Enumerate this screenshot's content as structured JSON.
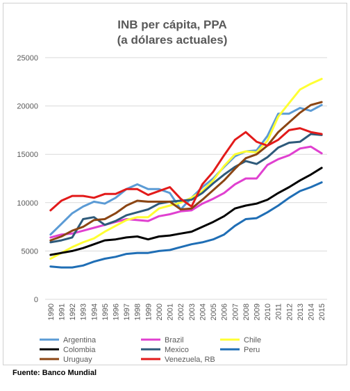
{
  "source": "Fuente: Banco Mundial",
  "chart_data": {
    "type": "line",
    "title": [
      "INB per cápita, PPA",
      "(a dólares actuales)"
    ],
    "xlabel": "",
    "ylabel": "",
    "ylim": [
      0,
      25000
    ],
    "yticks": [
      0,
      5000,
      10000,
      15000,
      20000,
      25000
    ],
    "grid": true,
    "legend_position": "bottom",
    "x": [
      1990,
      1991,
      1992,
      1993,
      1994,
      1995,
      1996,
      1997,
      1998,
      1999,
      2000,
      2001,
      2002,
      2003,
      2004,
      2005,
      2006,
      2007,
      2008,
      2009,
      2010,
      2011,
      2012,
      2013,
      2014,
      2015
    ],
    "series": [
      {
        "name": "Argentina",
        "color": "#5b9bd5",
        "values": [
          6700,
          7800,
          8900,
          9600,
          10100,
          9900,
          10500,
          11400,
          11900,
          11400,
          11400,
          11000,
          9300,
          10500,
          11600,
          12500,
          13700,
          14800,
          15300,
          15400,
          16900,
          19200,
          19200,
          19800,
          19500,
          20100
        ]
      },
      {
        "name": "Brazil",
        "color": "#e040d0",
        "values": [
          6400,
          6700,
          6800,
          7100,
          7400,
          7700,
          8000,
          8300,
          8200,
          8100,
          8600,
          8800,
          9100,
          9200,
          9900,
          10400,
          11000,
          11900,
          12500,
          12500,
          13900,
          14500,
          14900,
          15600,
          15800,
          15100
        ]
      },
      {
        "name": "Chile",
        "color": "#ffff33",
        "values": [
          4200,
          4800,
          5400,
          5900,
          6300,
          7000,
          7600,
          8200,
          8500,
          8500,
          9400,
          9700,
          10000,
          10500,
          11200,
          12300,
          13800,
          15000,
          15300,
          15200,
          16400,
          18900,
          20300,
          21700,
          22300,
          22800
        ]
      },
      {
        "name": "Colombia",
        "color": "#000000",
        "values": [
          4600,
          4800,
          5000,
          5300,
          5700,
          6100,
          6200,
          6400,
          6500,
          6200,
          6500,
          6600,
          6800,
          7000,
          7500,
          8000,
          8600,
          9400,
          9700,
          9900,
          10300,
          11000,
          11600,
          12300,
          12900,
          13600
        ]
      },
      {
        "name": "Mexico",
        "color": "#2e5a7a",
        "values": [
          5900,
          6100,
          6400,
          8300,
          8500,
          7700,
          8100,
          8700,
          9000,
          9300,
          9900,
          10100,
          10200,
          10300,
          11000,
          12000,
          12900,
          13700,
          14300,
          14000,
          14700,
          15700,
          16200,
          16300,
          17100,
          17000
        ]
      },
      {
        "name": "Peru",
        "color": "#1f6eb5",
        "values": [
          3400,
          3300,
          3300,
          3500,
          3900,
          4200,
          4400,
          4700,
          4800,
          4800,
          5000,
          5100,
          5400,
          5700,
          5900,
          6200,
          6700,
          7600,
          8300,
          8400,
          9000,
          9700,
          10500,
          11200,
          11600,
          12100
        ]
      },
      {
        "name": "Uruguay",
        "color": "#8b4513",
        "values": [
          6100,
          6500,
          7100,
          7500,
          8200,
          8300,
          8900,
          9700,
          10200,
          10100,
          10100,
          10100,
          9300,
          9400,
          10300,
          11300,
          12300,
          13500,
          14600,
          15000,
          15900,
          17300,
          18300,
          19300,
          20100,
          20400
        ]
      },
      {
        "name": "Venezuela, RB",
        "color": "#e21a1a",
        "values": [
          9200,
          10200,
          10700,
          10700,
          10500,
          10900,
          10900,
          11400,
          11400,
          10800,
          11200,
          11600,
          10400,
          9600,
          11900,
          13200,
          14900,
          16500,
          17300,
          16300,
          15900,
          16500,
          17500,
          17700,
          17300,
          17100
        ]
      }
    ]
  }
}
